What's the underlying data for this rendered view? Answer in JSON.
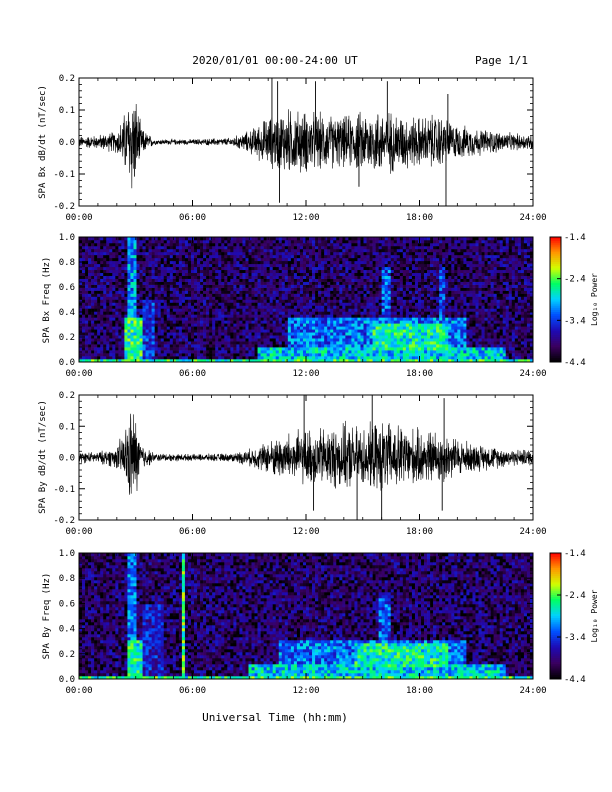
{
  "header": {
    "date_range": "2020/01/01  00:00-24:00 UT",
    "page": "Page 1/1"
  },
  "x_axis": {
    "label": "Universal Time (hh:mm)",
    "ticks": [
      "00:00",
      "06:00",
      "12:00",
      "18:00",
      "24:00"
    ],
    "range_hours": [
      0,
      24
    ]
  },
  "colorbar": {
    "label": "Log₁₀ Power",
    "label_display": "Log₁₀ Power",
    "ticks": [
      "-1.4",
      "-2.4",
      "-3.4",
      "-4.4"
    ],
    "range": [
      -4.4,
      -1.4
    ],
    "colormap": [
      "#000000",
      "#3a0060",
      "#1e0ab4",
      "#0050ff",
      "#00d2ff",
      "#00ff64",
      "#d2ff00",
      "#ff9600",
      "#ff0000"
    ]
  },
  "chart_data": [
    {
      "type": "line",
      "panel": "bx-timeseries",
      "ylabel": "SPA Bx dB/dt (nT/sec)",
      "yticks": [
        "0.2",
        "0.1",
        "0.0",
        "-0.1",
        "-0.2"
      ],
      "ylim": [
        -0.2,
        0.2
      ],
      "x_unit": "hours UT",
      "envelope": {
        "x": [
          0,
          1,
          2,
          2.5,
          2.8,
          3.0,
          3.3,
          4,
          6,
          8,
          9,
          10,
          11,
          12,
          13,
          14,
          15,
          16,
          17,
          18,
          19,
          20,
          21,
          22,
          23,
          24
        ],
        "amplitude": [
          0.02,
          0.025,
          0.04,
          0.12,
          0.2,
          0.16,
          0.05,
          0.01,
          0.01,
          0.015,
          0.04,
          0.09,
          0.12,
          0.11,
          0.1,
          0.09,
          0.11,
          0.12,
          0.1,
          0.09,
          0.1,
          0.06,
          0.05,
          0.04,
          0.03,
          0.03
        ]
      },
      "spikes": [
        {
          "x": 10.2,
          "y": 0.2
        },
        {
          "x": 10.5,
          "y": 0.19
        },
        {
          "x": 10.6,
          "y": -0.19
        },
        {
          "x": 12.5,
          "y": 0.19
        },
        {
          "x": 14.8,
          "y": -0.14
        },
        {
          "x": 16.3,
          "y": 0.19
        },
        {
          "x": 19.4,
          "y": -0.2
        },
        {
          "x": 19.5,
          "y": 0.15
        }
      ]
    },
    {
      "type": "heatmap",
      "panel": "bx-spectrogram",
      "ylabel": "SPA Bx Freq (Hz)",
      "yticks": [
        "1.0",
        "0.8",
        "0.6",
        "0.4",
        "0.2",
        "0.0"
      ],
      "ylim": [
        0.0,
        1.0
      ],
      "zrange": [
        -4.4,
        -1.4
      ],
      "base_power": -4.0,
      "features": [
        {
          "x0": 2.6,
          "x1": 3.1,
          "f0": 0.0,
          "f1": 1.0,
          "power": -3.1
        },
        {
          "x0": 2.4,
          "x1": 3.4,
          "f0": 0.0,
          "f1": 0.35,
          "power": -2.6
        },
        {
          "x0": 3.3,
          "x1": 4.0,
          "f0": 0.0,
          "f1": 0.5,
          "power": -3.5
        },
        {
          "x0": 9.5,
          "x1": 22.5,
          "f0": 0.0,
          "f1": 0.12,
          "power": -2.9
        },
        {
          "x0": 11.0,
          "x1": 20.5,
          "f0": 0.1,
          "f1": 0.35,
          "power": -3.2
        },
        {
          "x0": 15.5,
          "x1": 19.5,
          "f0": 0.1,
          "f1": 0.3,
          "power": -2.7
        },
        {
          "x0": 16.0,
          "x1": 16.4,
          "f0": 0.0,
          "f1": 0.75,
          "power": -3.3
        },
        {
          "x0": 19.1,
          "x1": 19.4,
          "f0": 0.0,
          "f1": 0.75,
          "power": -3.4
        },
        {
          "x0": 0.0,
          "x1": 24.0,
          "f0": 0.0,
          "f1": 0.03,
          "power": -2.6
        }
      ]
    },
    {
      "type": "line",
      "panel": "by-timeseries",
      "ylabel": "SPA By dB/dt (nT/sec)",
      "yticks": [
        "0.2",
        "0.1",
        "0.0",
        "-0.1",
        "-0.2"
      ],
      "ylim": [
        -0.2,
        0.2
      ],
      "x_unit": "hours UT",
      "envelope": {
        "x": [
          0,
          1,
          2,
          2.5,
          2.8,
          3.0,
          3.3,
          4,
          6,
          8,
          9,
          10,
          11,
          12,
          13,
          14,
          15,
          16,
          17,
          18,
          19,
          20,
          21,
          22,
          23,
          24
        ],
        "amplitude": [
          0.02,
          0.02,
          0.04,
          0.12,
          0.19,
          0.15,
          0.05,
          0.015,
          0.012,
          0.015,
          0.03,
          0.06,
          0.09,
          0.1,
          0.11,
          0.12,
          0.11,
          0.13,
          0.12,
          0.1,
          0.1,
          0.07,
          0.05,
          0.04,
          0.03,
          0.03
        ]
      },
      "spikes": [
        {
          "x": 11.9,
          "y": 0.2
        },
        {
          "x": 12.4,
          "y": -0.17
        },
        {
          "x": 14.7,
          "y": -0.2
        },
        {
          "x": 15.5,
          "y": 0.2
        },
        {
          "x": 16.0,
          "y": -0.2
        },
        {
          "x": 19.3,
          "y": 0.19
        },
        {
          "x": 19.2,
          "y": -0.17
        }
      ]
    },
    {
      "type": "heatmap",
      "panel": "by-spectrogram",
      "ylabel": "SPA By Freq (Hz)",
      "yticks": [
        "1.0",
        "0.8",
        "0.6",
        "0.4",
        "0.2",
        "0.0"
      ],
      "ylim": [
        0.0,
        1.0
      ],
      "zrange": [
        -4.4,
        -1.4
      ],
      "base_power": -4.0,
      "features": [
        {
          "x0": 2.6,
          "x1": 3.1,
          "f0": 0.0,
          "f1": 1.0,
          "power": -3.2
        },
        {
          "x0": 2.5,
          "x1": 3.3,
          "f0": 0.0,
          "f1": 0.3,
          "power": -2.7
        },
        {
          "x0": 3.4,
          "x1": 4.5,
          "f0": 0.0,
          "f1": 0.6,
          "power": -3.6
        },
        {
          "x0": 5.4,
          "x1": 5.55,
          "f0": 0.0,
          "f1": 1.0,
          "power": -2.5
        },
        {
          "x0": 9.0,
          "x1": 22.5,
          "f0": 0.0,
          "f1": 0.12,
          "power": -2.9
        },
        {
          "x0": 10.5,
          "x1": 20.5,
          "f0": 0.1,
          "f1": 0.3,
          "power": -3.2
        },
        {
          "x0": 14.5,
          "x1": 19.5,
          "f0": 0.1,
          "f1": 0.28,
          "power": -2.7
        },
        {
          "x0": 15.8,
          "x1": 16.5,
          "f0": 0.0,
          "f1": 0.7,
          "power": -3.3
        },
        {
          "x0": 0.0,
          "x1": 24.0,
          "f0": 0.0,
          "f1": 0.03,
          "power": -2.6
        }
      ]
    }
  ]
}
